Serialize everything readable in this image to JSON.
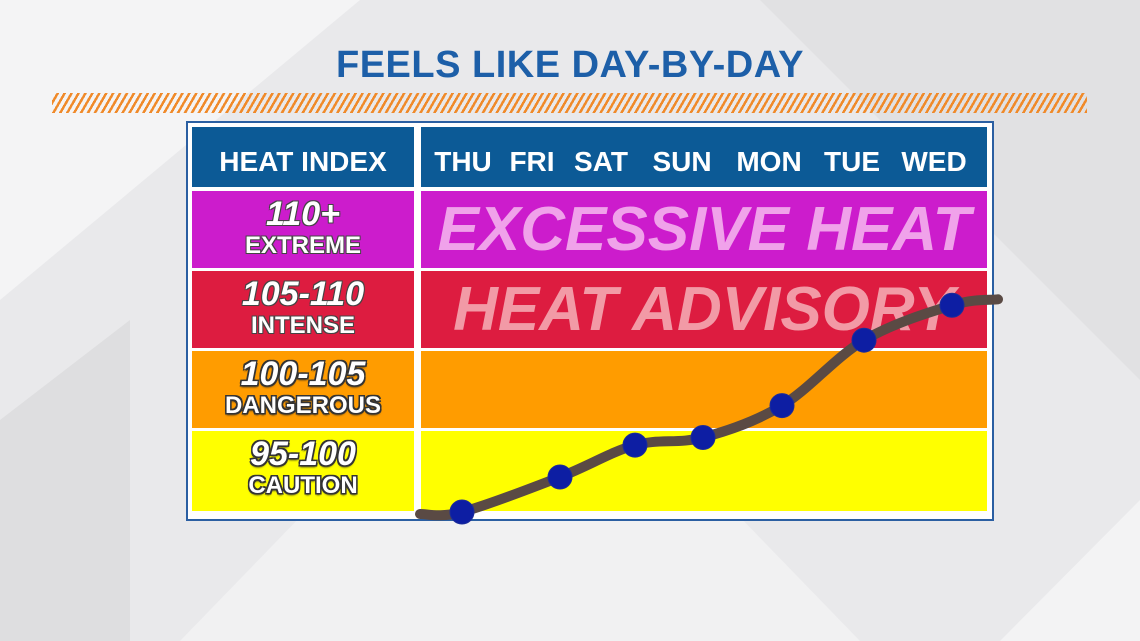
{
  "title": "FEELS LIKE DAY-BY-DAY",
  "table": {
    "header_label": "HEAT INDEX",
    "days": [
      "THU",
      "FRI",
      "SAT",
      "SUN",
      "MON",
      "TUE",
      "WED"
    ]
  },
  "bands": [
    {
      "range": "110+",
      "level": "EXTREME",
      "color": "#cc1ccc",
      "banner": "EXCESSIVE HEAT"
    },
    {
      "range": "105-110",
      "level": "INTENSE",
      "color": "#dd1c40",
      "banner": "HEAT ADVISORY"
    },
    {
      "range": "100-105",
      "level": "DANGEROUS",
      "color": "#ff9c00",
      "banner": ""
    },
    {
      "range": "95-100",
      "level": "CAUTION",
      "color": "#ffff00",
      "banner": ""
    }
  ],
  "chart_data": {
    "type": "line",
    "categories": [
      "THU",
      "FRI",
      "SAT",
      "SUN",
      "MON",
      "TUE",
      "WED"
    ],
    "values": [
      95,
      97.3,
      99.4,
      99.9,
      102,
      106.3,
      108.6
    ],
    "ylim": [
      95,
      115
    ],
    "line_color": "#5a4a44",
    "marker_color": "#0d1ea3",
    "grid": false
  }
}
